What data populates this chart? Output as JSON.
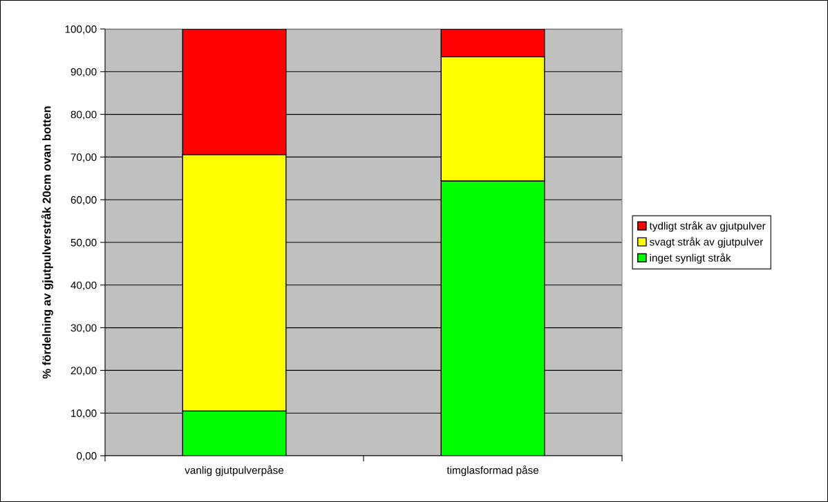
{
  "chart_data": {
    "type": "bar",
    "stacked": true,
    "ylabel": "% fördelning av gjutpulverstråk 20cm ovan botten",
    "categories": [
      "vanlig gjutpulverpåse",
      "timglasformad påse"
    ],
    "series": [
      {
        "name": "inget synligt stråk",
        "color": "#00ff00",
        "values": [
          10.5,
          64.4
        ]
      },
      {
        "name": "svagt stråk av gjutpulver",
        "color": "#ffff00",
        "values": [
          60.1,
          29.1
        ]
      },
      {
        "name": "tydligt stråk av gjutpulver",
        "color": "#ff0000",
        "values": [
          29.4,
          6.5
        ]
      }
    ],
    "ylim": [
      0,
      100
    ],
    "yticks": [
      {
        "value": 0,
        "label": "0,00"
      },
      {
        "value": 10,
        "label": "10,00"
      },
      {
        "value": 20,
        "label": "20,00"
      },
      {
        "value": 30,
        "label": "30,00"
      },
      {
        "value": 40,
        "label": "40,00"
      },
      {
        "value": 50,
        "label": "50,00"
      },
      {
        "value": 60,
        "label": "60,00"
      },
      {
        "value": 70,
        "label": "70,00"
      },
      {
        "value": 80,
        "label": "80,00"
      },
      {
        "value": 90,
        "label": "90,00"
      },
      {
        "value": 100,
        "label": "100,00"
      }
    ],
    "grid": "y",
    "legend": "right"
  }
}
